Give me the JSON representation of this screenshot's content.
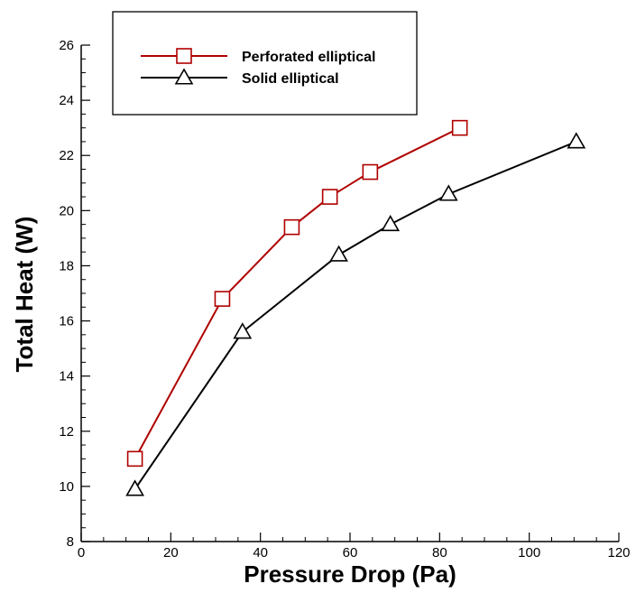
{
  "chart_data": {
    "type": "line",
    "title": "",
    "xlabel": "Pressure Drop (Pa)",
    "ylabel": "Total Heat (W)",
    "xlim": [
      0,
      120
    ],
    "ylim": [
      8,
      26
    ],
    "xticks": [
      0,
      20,
      40,
      60,
      80,
      100,
      120
    ],
    "yticks": [
      8,
      10,
      12,
      14,
      16,
      18,
      20,
      22,
      24,
      26
    ],
    "grid": false,
    "legend_position": "top-left",
    "series": [
      {
        "name": "Perforated elliptical",
        "color": "#b00000",
        "marker": "square",
        "x": [
          12,
          31.5,
          47,
          55.5,
          64.5,
          84.5
        ],
        "y": [
          11.0,
          16.8,
          19.4,
          20.5,
          21.4,
          23.0
        ]
      },
      {
        "name": "Solid elliptical",
        "color": "#000000",
        "marker": "triangle",
        "x": [
          12,
          36,
          57.5,
          69,
          82,
          110.5
        ],
        "y": [
          9.9,
          15.6,
          18.4,
          19.5,
          20.6,
          22.5
        ]
      }
    ]
  }
}
